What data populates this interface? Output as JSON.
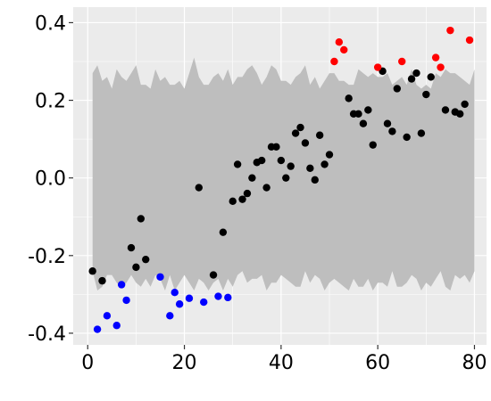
{
  "chart_data": {
    "type": "scatter",
    "title": "",
    "xlabel": "",
    "ylabel": "",
    "xlim": [
      -3,
      82.5
    ],
    "ylim": [
      -0.43,
      0.44
    ],
    "x_ticks": [
      0,
      20,
      40,
      60,
      80
    ],
    "y_ticks": [
      -0.4,
      -0.2,
      0.0,
      0.2,
      0.4
    ],
    "x_tick_labels": [
      "0",
      "20",
      "40",
      "60",
      "80"
    ],
    "y_tick_labels": [
      "-0.4",
      "-0.2",
      "0.0",
      "0.2",
      "0.4"
    ],
    "grid": true,
    "background_color": "#ebebeb",
    "band_color": "#bebebe",
    "band": {
      "x": [
        1,
        2,
        3,
        4,
        5,
        6,
        7,
        8,
        9,
        10,
        11,
        12,
        13,
        14,
        15,
        16,
        17,
        18,
        19,
        20,
        21,
        22,
        23,
        24,
        25,
        26,
        27,
        28,
        29,
        30,
        31,
        32,
        33,
        34,
        35,
        36,
        37,
        38,
        39,
        40,
        41,
        42,
        43,
        44,
        45,
        46,
        47,
        48,
        49,
        50,
        51,
        52,
        53,
        54,
        55,
        56,
        57,
        58,
        59,
        60,
        61,
        62,
        63,
        64,
        65,
        66,
        67,
        68,
        69,
        70,
        71,
        72,
        73,
        74,
        75,
        76,
        77,
        78,
        79,
        80
      ],
      "upper": [
        0.27,
        0.29,
        0.25,
        0.26,
        0.23,
        0.28,
        0.26,
        0.25,
        0.27,
        0.29,
        0.24,
        0.24,
        0.23,
        0.28,
        0.25,
        0.26,
        0.24,
        0.24,
        0.25,
        0.23,
        0.27,
        0.31,
        0.26,
        0.24,
        0.24,
        0.26,
        0.27,
        0.25,
        0.28,
        0.24,
        0.26,
        0.26,
        0.28,
        0.29,
        0.27,
        0.24,
        0.26,
        0.29,
        0.28,
        0.25,
        0.25,
        0.24,
        0.26,
        0.27,
        0.29,
        0.24,
        0.26,
        0.23,
        0.25,
        0.27,
        0.27,
        0.25,
        0.25,
        0.24,
        0.24,
        0.28,
        0.27,
        0.26,
        0.27,
        0.26,
        0.26,
        0.27,
        0.24,
        0.25,
        0.26,
        0.24,
        0.28,
        0.24,
        0.23,
        0.24,
        0.23,
        0.27,
        0.26,
        0.28,
        0.27,
        0.27,
        0.26,
        0.25,
        0.24,
        0.28
      ],
      "lower": [
        -0.24,
        -0.29,
        -0.28,
        -0.25,
        -0.25,
        -0.27,
        -0.28,
        -0.27,
        -0.25,
        -0.27,
        -0.28,
        -0.26,
        -0.28,
        -0.25,
        -0.26,
        -0.29,
        -0.25,
        -0.29,
        -0.27,
        -0.25,
        -0.27,
        -0.29,
        -0.26,
        -0.27,
        -0.29,
        -0.27,
        -0.26,
        -0.29,
        -0.26,
        -0.28,
        -0.25,
        -0.24,
        -0.27,
        -0.26,
        -0.26,
        -0.25,
        -0.29,
        -0.27,
        -0.27,
        -0.25,
        -0.26,
        -0.27,
        -0.28,
        -0.28,
        -0.24,
        -0.27,
        -0.25,
        -0.26,
        -0.29,
        -0.27,
        -0.26,
        -0.27,
        -0.28,
        -0.29,
        -0.26,
        -0.28,
        -0.28,
        -0.26,
        -0.29,
        -0.27,
        -0.27,
        -0.28,
        -0.24,
        -0.28,
        -0.28,
        -0.27,
        -0.25,
        -0.26,
        -0.29,
        -0.27,
        -0.28,
        -0.26,
        -0.24,
        -0.28,
        -0.29,
        -0.25,
        -0.26,
        -0.25,
        -0.27,
        -0.24
      ]
    },
    "series": [
      {
        "color": "#0000ff",
        "x": [
          2,
          4,
          6,
          7,
          8,
          15,
          17,
          18,
          19,
          21,
          24,
          27,
          29
        ],
        "y": [
          -0.39,
          -0.355,
          -0.38,
          -0.275,
          -0.315,
          -0.255,
          -0.355,
          -0.295,
          -0.325,
          -0.31,
          -0.32,
          -0.305,
          -0.308
        ]
      },
      {
        "color": "#000000",
        "x": [
          1,
          3,
          9,
          10,
          11,
          12,
          23,
          26,
          28,
          30,
          31,
          32,
          33,
          34,
          35,
          36,
          37,
          38,
          39,
          40,
          41,
          42,
          43,
          44,
          45,
          46,
          47,
          48,
          49,
          50,
          54,
          55,
          56,
          57,
          58,
          59,
          61,
          62,
          63,
          64,
          66,
          67,
          68,
          69,
          70,
          71,
          74,
          76,
          77,
          78
        ],
        "y": [
          -0.24,
          -0.265,
          -0.18,
          -0.23,
          -0.105,
          -0.21,
          -0.025,
          -0.25,
          -0.14,
          -0.06,
          0.035,
          -0.055,
          -0.04,
          0.0,
          0.04,
          0.045,
          -0.025,
          0.08,
          0.08,
          0.045,
          0.0,
          0.03,
          0.115,
          0.13,
          0.09,
          0.025,
          -0.005,
          0.11,
          0.035,
          0.06,
          0.205,
          0.165,
          0.165,
          0.14,
          0.175,
          0.085,
          0.275,
          0.14,
          0.12,
          0.23,
          0.105,
          0.255,
          0.27,
          0.115,
          0.215,
          0.26,
          0.175,
          0.17,
          0.165,
          0.19
        ]
      },
      {
        "color": "#ff0000",
        "x": [
          51,
          52,
          53,
          60,
          65,
          72,
          73,
          75,
          79
        ],
        "y": [
          0.3,
          0.35,
          0.33,
          0.285,
          0.3,
          0.31,
          0.285,
          0.38,
          0.355
        ]
      }
    ]
  }
}
